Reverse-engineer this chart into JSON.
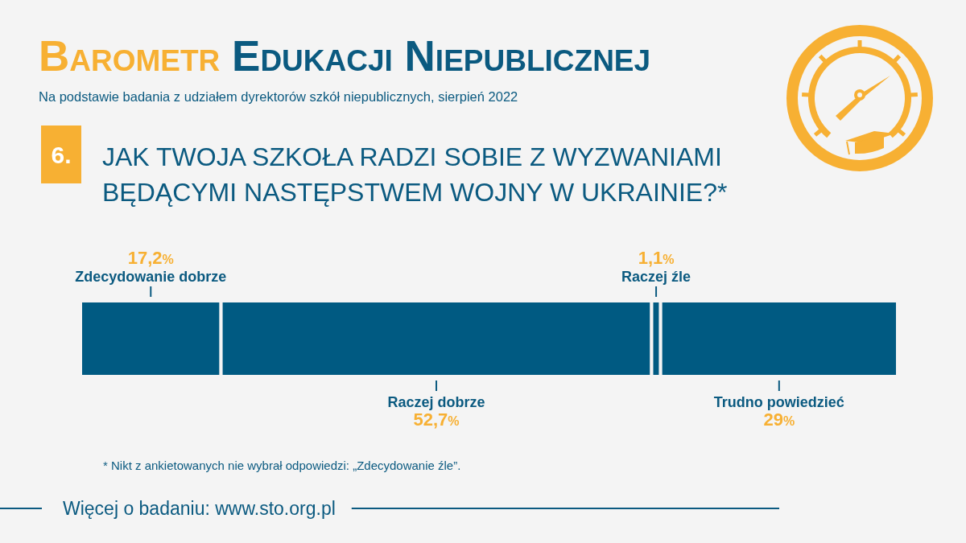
{
  "chart_data": {
    "type": "bar",
    "orientation": "horizontal",
    "stacked": true,
    "title": "Barometr Edukacji Niepublicznej",
    "subtitle": "Na podstawie badania z udziałem dyrektorów szkół niepublicznych, sierpień 2022",
    "annotations": [
      "6.",
      "JAK TWOJA SZKOŁA RADZI SOBIE Z WYZWANIAMI BĘDĄCYMI NASTĘPSTWEM WOJNY W UKRAINIE?*",
      "* Nikt z ankietowanych nie wybrał odpowiedzi: „Zdecydowanie źle”.",
      "Więcej o badaniu: www.sto.org.pl"
    ],
    "categories": [
      null
    ],
    "series": [
      {
        "name": "Zdecydowanie dobrze",
        "color": "#005a82",
        "values": [
          17.2
        ],
        "value_labels": [
          "17,2%"
        ]
      },
      {
        "name": "Raczej dobrze",
        "color": "#005a82",
        "values": [
          52.7
        ],
        "value_labels": [
          "52,7%"
        ]
      },
      {
        "name": "Raczej źle",
        "color": "#005a82",
        "values": [
          1.1
        ],
        "value_labels": [
          "1,1%"
        ]
      },
      {
        "name": "Trudno powiedzieć",
        "color": "#005a82",
        "values": [
          29
        ],
        "value_labels": [
          "29%"
        ]
      }
    ]
  }
}
